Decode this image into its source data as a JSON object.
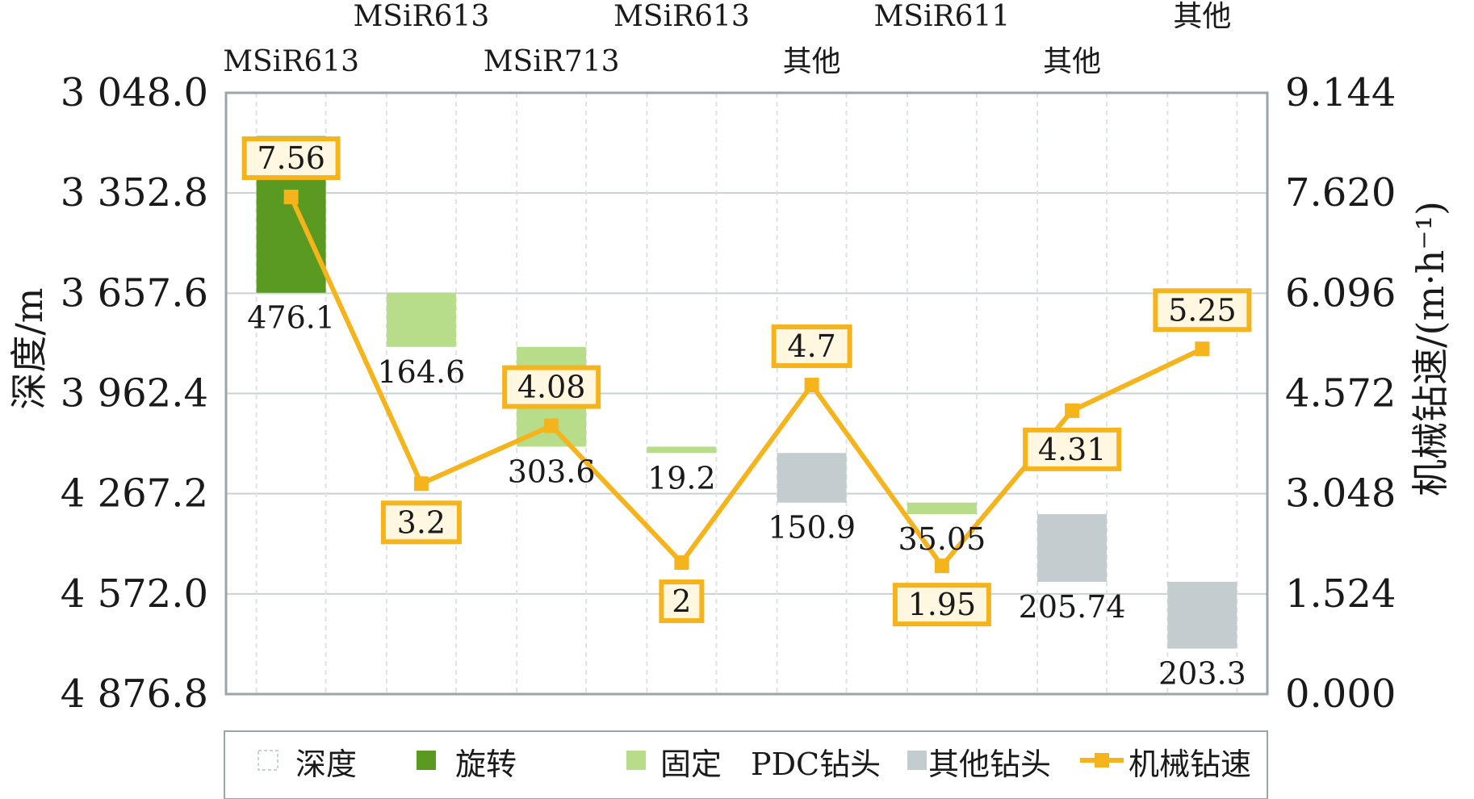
{
  "chart_data": {
    "type": "bar",
    "ylabel_left": "深度/m",
    "ylabel_right": "机械钻速/(m·h⁻¹)",
    "ylim_left": [
      3048.0,
      4876.8
    ],
    "ylim_right": [
      0.0,
      9.144
    ],
    "left_axis_inverted": true,
    "left_ticks": [
      "3 048.0",
      "3 352.8",
      "3 657.6",
      "3 962.4",
      "4 267.2",
      "4 572.0",
      "4 876.8"
    ],
    "right_ticks": [
      "9.144",
      "7.620",
      "6.096",
      "4.572",
      "3.048",
      "1.524",
      "0.000"
    ],
    "grid": true,
    "legend_position": "bottom",
    "legend": [
      "深度",
      "旋转",
      "固定",
      "PDC钻头",
      "其他钻头",
      "机械钻速"
    ],
    "colors": {
      "depth": "#ffffff",
      "rotary": "#5b9a21",
      "fixed": "#b7dc8a",
      "other": "#c3ccce",
      "rop": "#f5b31c",
      "grid": "#c9d1d3",
      "frame": "#9aa5a7"
    },
    "segments": [
      {
        "bit": "MSiR613",
        "start_depth": 3180.0,
        "length": 476.1,
        "length_label": "476.1",
        "type": "rotary",
        "rop": 7.56,
        "rop_label": "7.56"
      },
      {
        "bit": "MSiR613",
        "start_depth": 3656.1,
        "length": 164.6,
        "length_label": "164.6",
        "type": "fixed",
        "rop": 3.2,
        "rop_label": "3.2"
      },
      {
        "bit": "MSiR713",
        "start_depth": 3820.7,
        "length": 303.6,
        "length_label": "303.6",
        "type": "fixed",
        "rop": 4.08,
        "rop_label": "4.08"
      },
      {
        "bit": "MSiR613",
        "start_depth": 4124.3,
        "length": 19.2,
        "length_label": "19.2",
        "type": "fixed",
        "rop": 2,
        "rop_label": "2"
      },
      {
        "bit": "其他",
        "start_depth": 4143.5,
        "length": 150.9,
        "length_label": "150.9",
        "type": "other",
        "rop": 4.7,
        "rop_label": "4.7"
      },
      {
        "bit": "MSiR611",
        "start_depth": 4294.4,
        "length": 35.05,
        "length_label": "35.05",
        "type": "fixed",
        "rop": 1.95,
        "rop_label": "1.95"
      },
      {
        "bit": "其他",
        "start_depth": 4329.5,
        "length": 205.74,
        "length_label": "205.74",
        "type": "other",
        "rop": 4.31,
        "rop_label": "4.31"
      },
      {
        "bit": "其他",
        "start_depth": 4535.2,
        "length": 203.3,
        "length_label": "203.3",
        "type": "other",
        "rop": 5.25,
        "rop_label": "5.25"
      }
    ]
  }
}
